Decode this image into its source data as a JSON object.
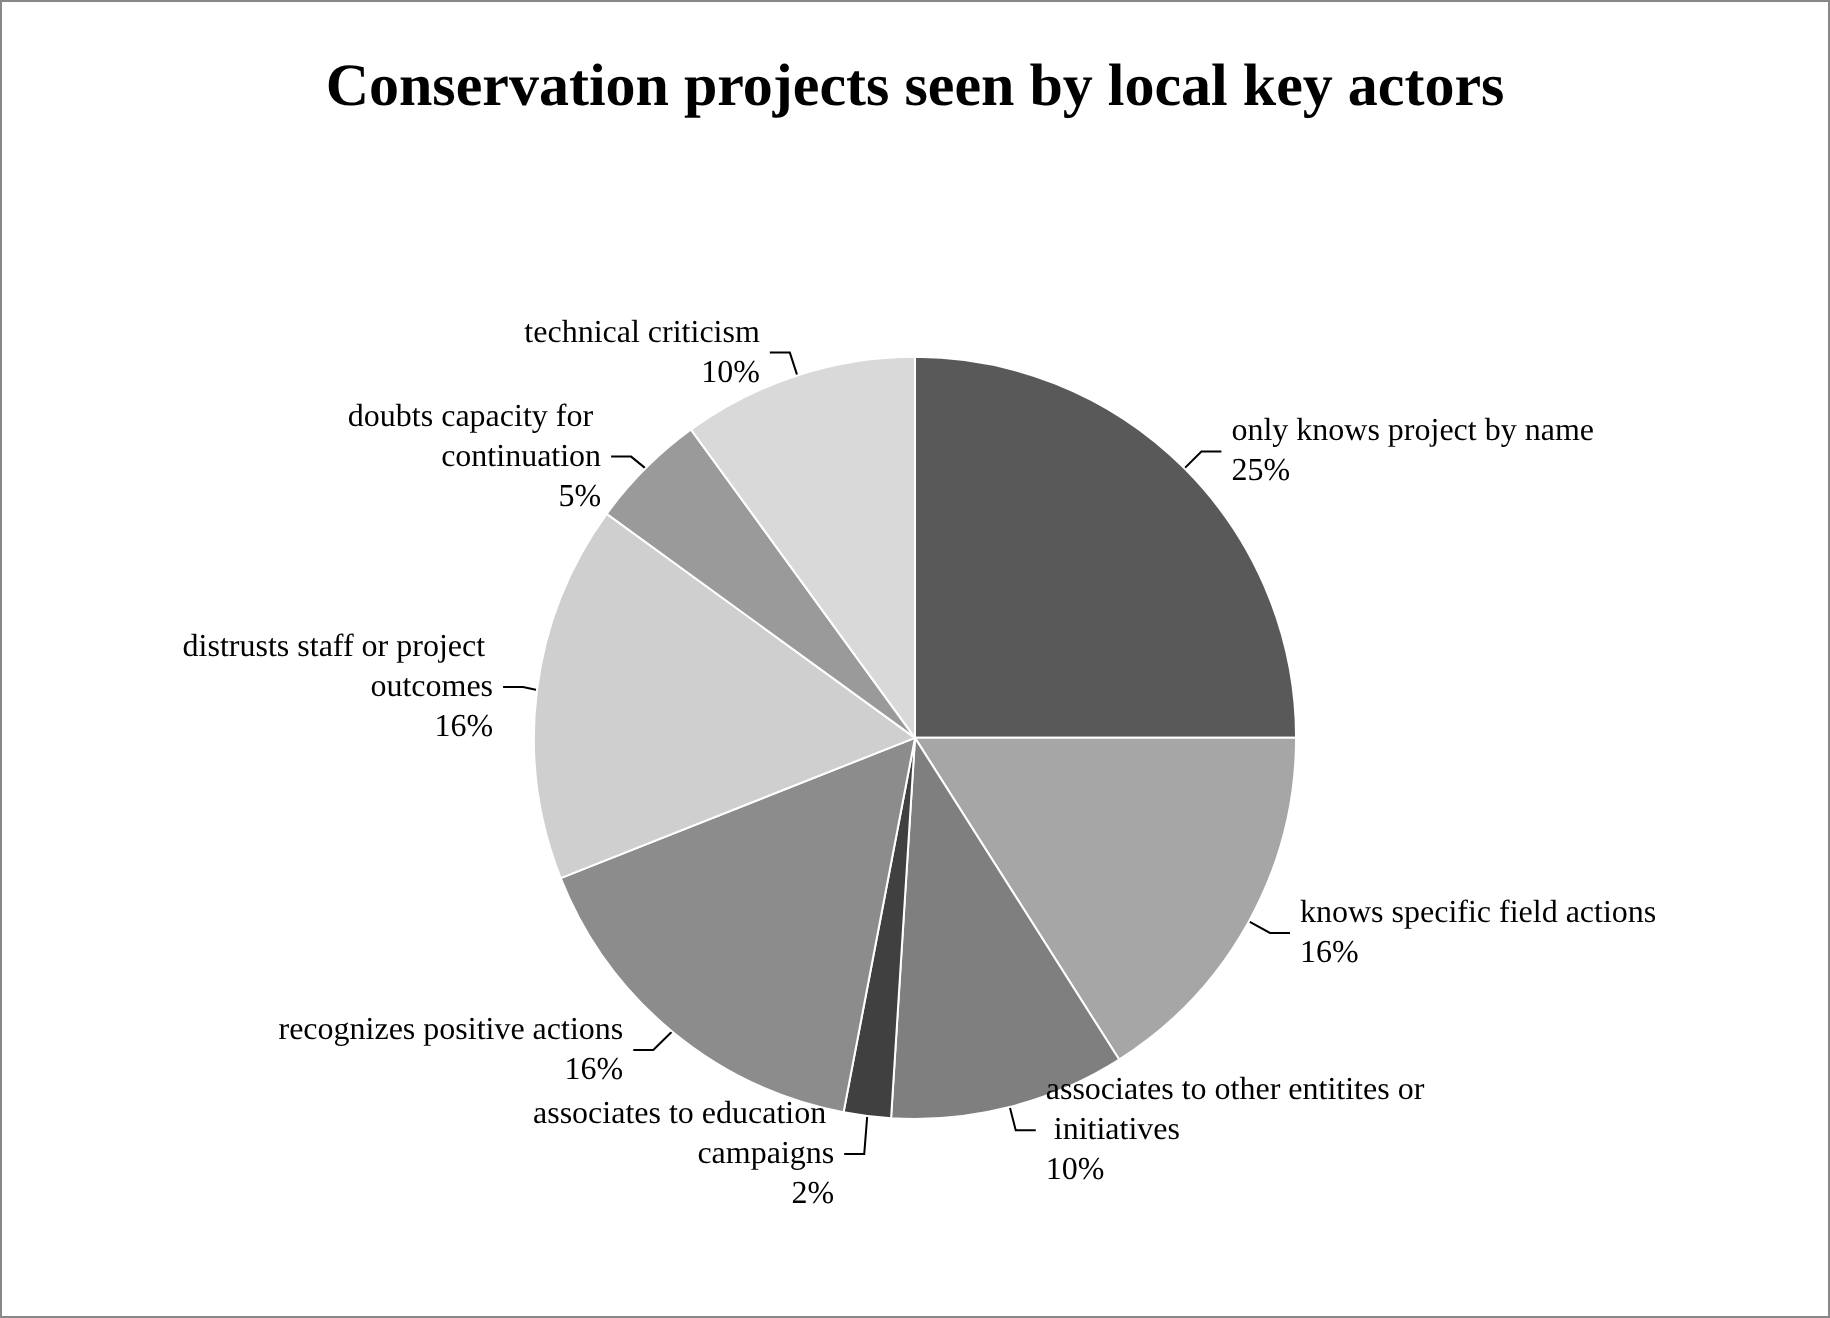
{
  "chart_data": {
    "type": "pie",
    "title": "Conservation projects seen by local key actors",
    "categories": [
      "only knows project by name",
      "knows specific field actions",
      "associates to other entitites or initiatives",
      "associates to education campaigns",
      "recognizes positive actions",
      "distrusts staff or project outcomes",
      "doubts capacity for continuation",
      "technical criticism"
    ],
    "values": [
      25,
      16,
      10,
      2,
      16,
      16,
      5,
      10
    ],
    "value_labels": [
      "25%",
      "16%",
      "10%",
      "2%",
      "16%",
      "16%",
      "5%",
      "10%"
    ],
    "colors": [
      "#595959",
      "#a6a6a6",
      "#7f7f7f",
      "#404040",
      "#8c8c8c",
      "#cfcfcf",
      "#9a9a9a",
      "#d9d9d9"
    ],
    "legend": false
  }
}
